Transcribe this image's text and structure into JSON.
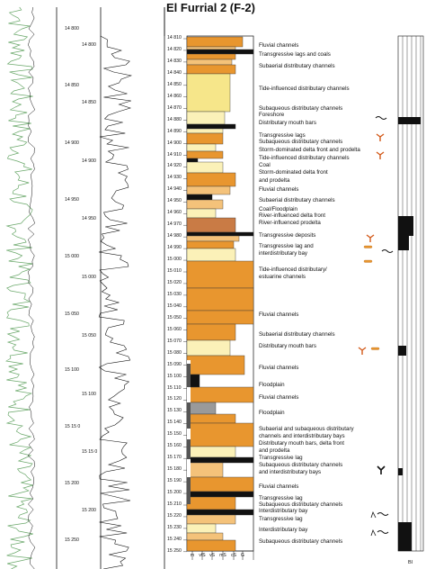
{
  "title": "El Furrial 2 (F-2)",
  "depth_col1": [
    "14 800",
    "14 850",
    "14 900",
    "14 950",
    "15 000",
    "15 050",
    "15 100",
    "15 15 0",
    "15 200",
    "15 250"
  ],
  "depth_col2": [
    "14 800",
    "14 850",
    "14 900",
    "14 950",
    "15 000",
    "15 050",
    "15 100",
    "15 15 0",
    "15 200"
  ],
  "depth_col3": [
    "14 810",
    "14 820",
    "14 830",
    "14 840",
    "14 850",
    "14 860",
    "14 870",
    "14 880",
    "14 890",
    "14 900",
    "14 910",
    "14 920",
    "14 930",
    "14 940",
    "14 950",
    "14 960",
    "14 970",
    "14 980",
    "14 990",
    "15 000",
    "15 010",
    "15 020",
    "15 030",
    "15 040",
    "15 050",
    "15 060",
    "15 070",
    "15 080",
    "15 090",
    "15 100",
    "15 110",
    "15 120",
    "15 130",
    "15 140",
    "15 150",
    "15 160",
    "15 170",
    "15 180",
    "15 190",
    "15 200",
    "15 210",
    "15 220",
    "15 230",
    "15 240",
    "15 250"
  ],
  "grain_sizes": [
    "m",
    "vfS",
    "vS",
    "mS",
    "cS",
    "G"
  ],
  "bi_label": "BI",
  "interpretations": [
    "Fluvial channels",
    "Transgressive lags and coals",
    "Subaerial distributary channels",
    "Tide-influenced distributary channels",
    "Subaqueous distributary channels",
    "Foreshore",
    "Distributary mouth bars",
    "Transgressive lags",
    "Subaqueous distributary channels",
    "Storm-dominated delta front and prodelta",
    "Tide-influenced distributary channels",
    "Coal",
    "Storm-dominated delta front",
    "and prodelta",
    "Fluvial channels",
    "Subaerial distributary channels",
    "Coal/Floodplain",
    "River-influenced delta front",
    "River-influenced prodelta",
    "Transgressive deposits",
    "Transgressive lag and",
    "interdistributary bay",
    "Tide-influenced distributary/",
    "estuarine channels",
    "Fluvial channels",
    "Subaerial distributary channels",
    "Distributary mouth bars",
    "Fluvial channels",
    "Floodplain",
    "Fluvial channels",
    "Floodplain",
    "Subaerial and subaqueous distributary",
    "channels and interdistributary bays",
    "Distributary mouth bars, delta front",
    "and prodelta",
    "Transgressive lag",
    "Subaqueous distributary channels",
    "and interdistributary bays",
    "Fluvial channels",
    "Transgressive lag",
    "Subaqueous distributary channels",
    "Interdistributary bay",
    "Transgressive lag",
    "Interdistributary bay",
    "Subaqueous distributary channels"
  ],
  "colors": {
    "orange": "#e8962f",
    "light_orange": "#f4c27a",
    "yellow": "#f6e68a",
    "pale_yellow": "#fbf1b8",
    "green_log": "#6aa86a",
    "black": "#111111",
    "grey": "#9a9a9a",
    "brown": "#c97b45"
  }
}
